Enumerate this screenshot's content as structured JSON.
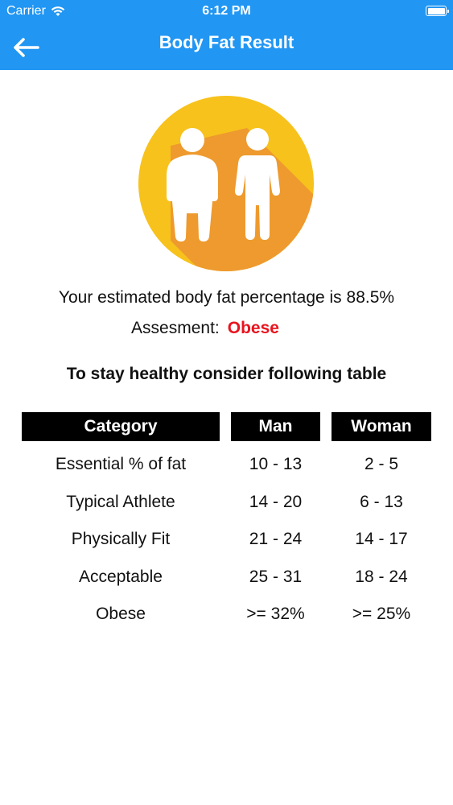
{
  "status_bar": {
    "carrier": "Carrier",
    "time": "6:12 PM"
  },
  "nav": {
    "title": "Body Fat Result",
    "back_icon": "arrow-left-icon"
  },
  "hero": {
    "icon": "body-figures-icon",
    "circle_color": "#F7C21C",
    "shadow_color": "#EE9A2E"
  },
  "result": {
    "text": "Your estimated body fat percentage is 88.5%",
    "assessment_label": "Assesment:",
    "assessment_value": "Obese",
    "assessment_color": "#E8141E"
  },
  "advice": "To stay healthy consider following table",
  "table": {
    "headers": [
      "Category",
      "Man",
      "Woman"
    ],
    "rows": [
      [
        "Essential % of fat",
        "10 - 13",
        "2 - 5"
      ],
      [
        "Typical Athlete",
        "14 - 20",
        "6 - 13"
      ],
      [
        "Physically Fit",
        "21 - 24",
        "14 - 17"
      ],
      [
        "Acceptable",
        "25 - 31",
        "18 - 24"
      ],
      [
        "Obese",
        ">= 32%",
        ">= 25%"
      ]
    ]
  },
  "colors": {
    "brand": "#2196F3",
    "header_bg": "#000000"
  }
}
